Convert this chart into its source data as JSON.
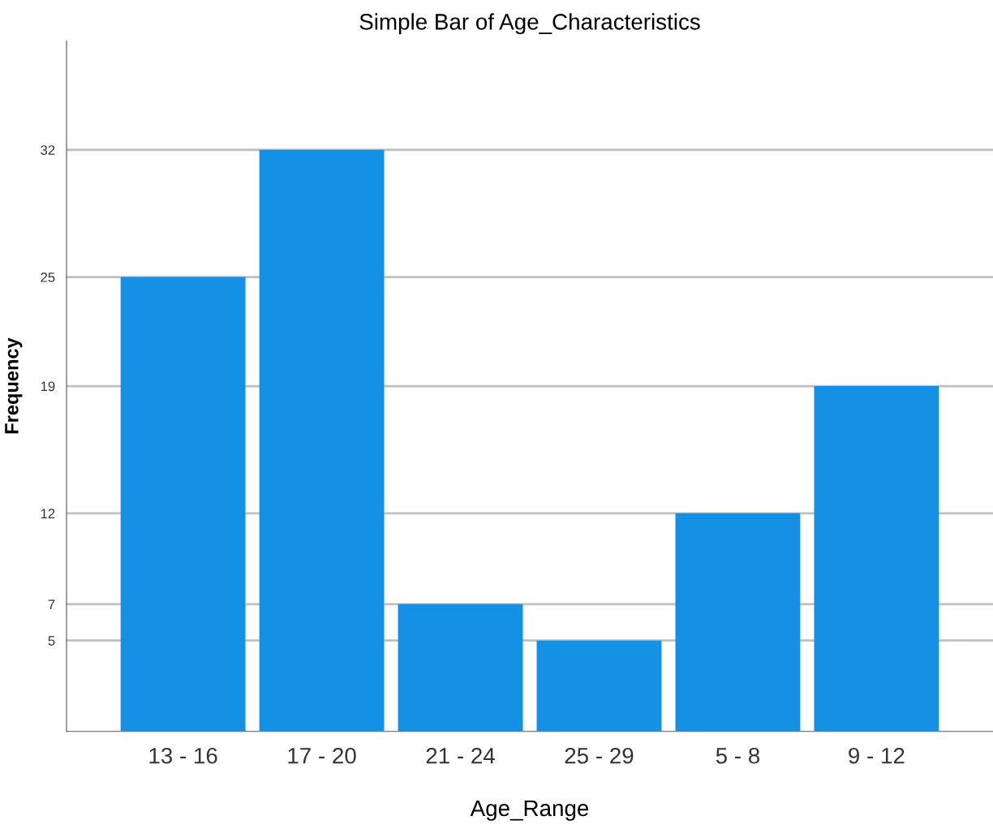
{
  "chart_data": {
    "type": "bar",
    "title": "Simple Bar of Age_Characteristics",
    "xlabel": "Age_Range",
    "ylabel": "Frequency",
    "categories": [
      "13 - 16",
      "17 - 20",
      "21 - 24",
      "25 - 29",
      "5 - 8",
      "9 - 12"
    ],
    "values": [
      25,
      32,
      7,
      5,
      12,
      19
    ],
    "color": "#1490e4",
    "ylim": [
      0,
      38
    ],
    "yticks": [
      5,
      7,
      12,
      19,
      25,
      32
    ],
    "grid": "y"
  }
}
